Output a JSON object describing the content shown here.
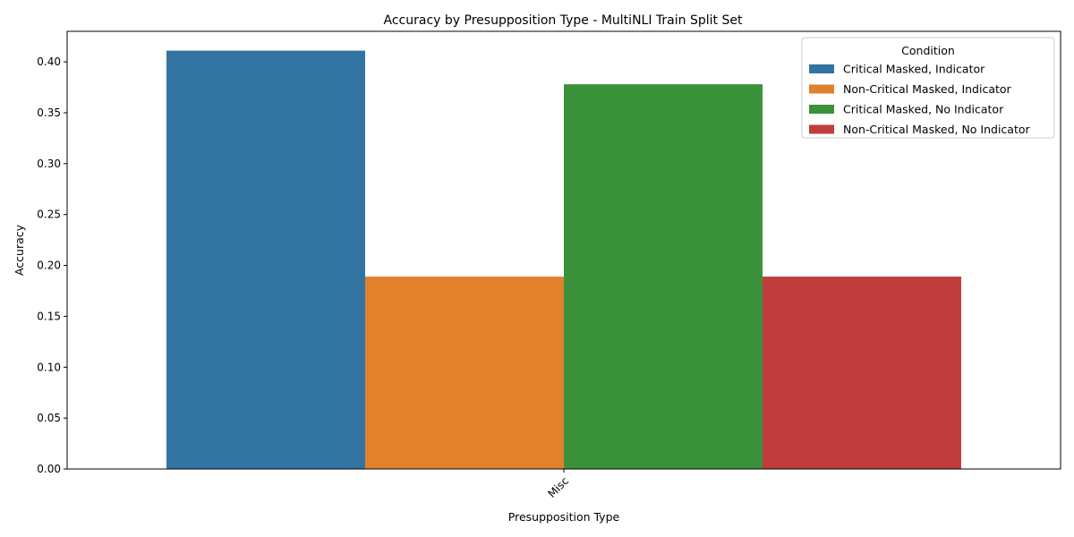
{
  "chart_data": {
    "type": "bar",
    "title": "Accuracy by Presupposition Type - MultiNLI Train Split Set",
    "xlabel": "Presupposition Type",
    "ylabel": "Accuracy",
    "categories": [
      "Misc"
    ],
    "ylim": [
      0,
      0.43
    ],
    "yticks": [
      0.0,
      0.05,
      0.1,
      0.15,
      0.2,
      0.25,
      0.3,
      0.35,
      0.4
    ],
    "grid": false,
    "legend": {
      "title": "Condition",
      "placement": "top-right"
    },
    "series": [
      {
        "name": "Critical Masked, Indicator",
        "values": [
          0.411
        ],
        "color": "#3274a1"
      },
      {
        "name": "Non-Critical Masked, Indicator",
        "values": [
          0.189
        ],
        "color": "#e1812c"
      },
      {
        "name": "Critical Masked, No Indicator",
        "values": [
          0.378
        ],
        "color": "#3a923a"
      },
      {
        "name": "Non-Critical Masked, No Indicator",
        "values": [
          0.189
        ],
        "color": "#c03d3e"
      }
    ]
  }
}
